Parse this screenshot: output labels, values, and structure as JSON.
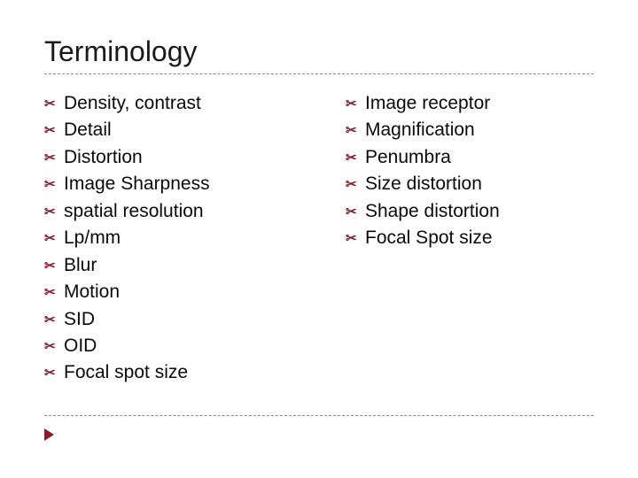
{
  "title": "Terminology",
  "bullet_glyph": "✂",
  "colors": {
    "accent": "#8a1d2b",
    "text": "#0a0a0a",
    "rule": "#8a8a8a",
    "background": "#ffffff"
  },
  "typography": {
    "title_fontsize_pt": 24,
    "item_fontsize_pt": 16,
    "font_family": "Arial"
  },
  "columns": {
    "left": {
      "items": [
        "Density, contrast",
        "Detail",
        "Distortion",
        "Image Sharpness",
        "spatial resolution",
        "Lp/mm",
        "Blur",
        "Motion",
        "SID",
        "OID",
        "Focal spot size"
      ]
    },
    "right": {
      "items": [
        "Image receptor",
        "Magnification",
        "Penumbra",
        "Size distortion",
        "Shape distortion",
        "Focal Spot size"
      ]
    }
  }
}
